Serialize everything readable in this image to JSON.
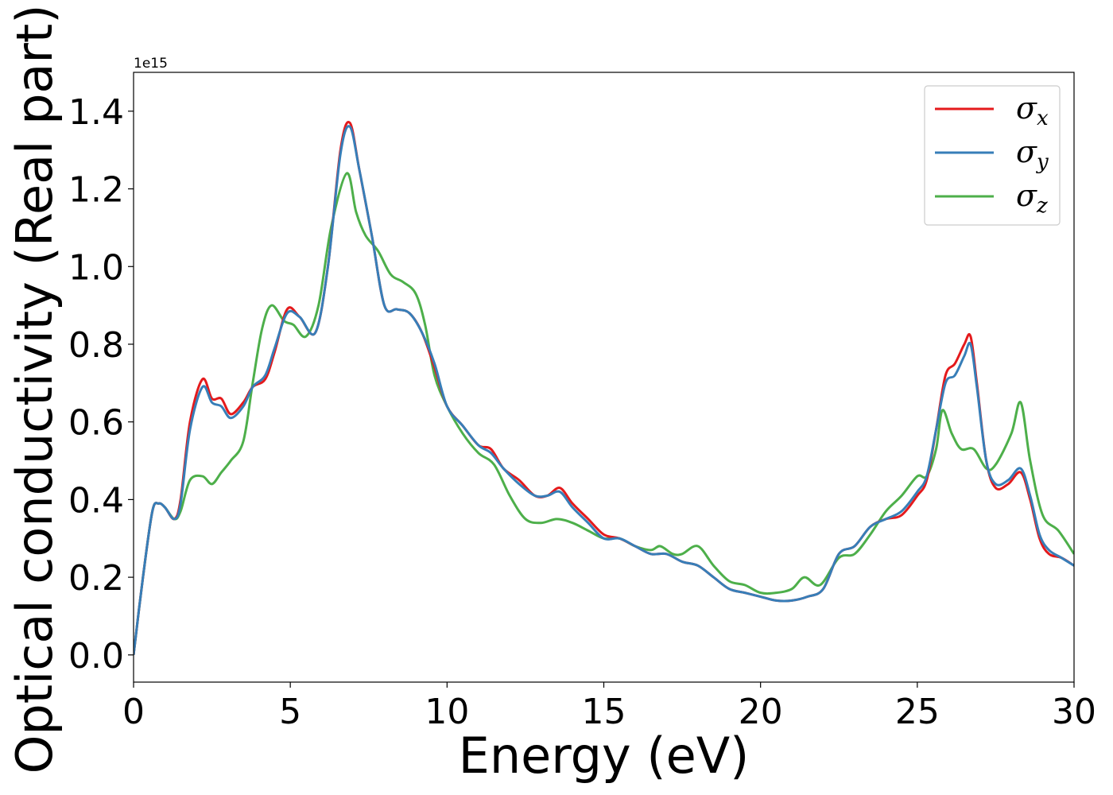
{
  "chart_data": {
    "type": "line",
    "title": "",
    "xlabel": "Energy (eV)",
    "ylabel": "Optical conductivity (Real part)",
    "y_offset_text": "1e15",
    "xlim": [
      0,
      30
    ],
    "ylim": [
      -0.07,
      1.5
    ],
    "xticks": [
      0,
      5,
      10,
      15,
      20,
      25,
      30
    ],
    "xtick_labels": [
      "0",
      "5",
      "10",
      "15",
      "20",
      "25",
      "30"
    ],
    "yticks": [
      0.0,
      0.2,
      0.4,
      0.6,
      0.8,
      1.0,
      1.2,
      1.4
    ],
    "ytick_labels": [
      "0.0",
      "0.2",
      "0.4",
      "0.6",
      "0.8",
      "1.0",
      "1.2",
      "1.4"
    ],
    "grid": false,
    "legend": {
      "placement": "top-right"
    },
    "series": [
      {
        "name": "σx",
        "legend_base": "σ",
        "legend_sub": "x",
        "color": "#e41a1c",
        "x": [
          0,
          0.3,
          0.6,
          0.8,
          1.0,
          1.3,
          1.5,
          1.8,
          2.2,
          2.5,
          2.8,
          3.1,
          3.5,
          3.8,
          4.2,
          4.5,
          4.9,
          5.3,
          5.8,
          6.2,
          6.6,
          6.9,
          7.2,
          7.6,
          8.0,
          8.4,
          8.8,
          9.2,
          9.6,
          10.0,
          10.5,
          11.0,
          11.4,
          11.8,
          12.3,
          12.8,
          13.2,
          13.6,
          14.0,
          14.5,
          15.0,
          15.5,
          16.0,
          16.5,
          17.0,
          17.5,
          18.0,
          18.5,
          19.0,
          19.5,
          20.0,
          20.5,
          21.0,
          21.5,
          22.0,
          22.5,
          23.0,
          23.5,
          24.0,
          24.5,
          25.0,
          25.3,
          25.6,
          25.9,
          26.2,
          26.5,
          26.7,
          26.9,
          27.2,
          27.5,
          27.9,
          28.3,
          28.6,
          28.9,
          29.2,
          29.6,
          30.0
        ],
        "y": [
          0.0,
          0.2,
          0.37,
          0.39,
          0.38,
          0.35,
          0.4,
          0.6,
          0.71,
          0.66,
          0.66,
          0.62,
          0.65,
          0.69,
          0.71,
          0.78,
          0.89,
          0.87,
          0.83,
          1.0,
          1.3,
          1.37,
          1.25,
          1.08,
          0.9,
          0.89,
          0.88,
          0.83,
          0.74,
          0.64,
          0.59,
          0.54,
          0.53,
          0.48,
          0.45,
          0.41,
          0.41,
          0.43,
          0.39,
          0.35,
          0.31,
          0.3,
          0.28,
          0.26,
          0.26,
          0.24,
          0.23,
          0.2,
          0.17,
          0.16,
          0.15,
          0.14,
          0.14,
          0.15,
          0.17,
          0.26,
          0.28,
          0.33,
          0.35,
          0.36,
          0.41,
          0.45,
          0.58,
          0.72,
          0.75,
          0.8,
          0.82,
          0.7,
          0.5,
          0.43,
          0.44,
          0.47,
          0.4,
          0.3,
          0.26,
          0.25,
          0.23
        ]
      },
      {
        "name": "σy",
        "legend_base": "σ",
        "legend_sub": "y",
        "color": "#377eb8",
        "x": [
          0,
          0.3,
          0.6,
          0.8,
          1.0,
          1.3,
          1.5,
          1.8,
          2.2,
          2.5,
          2.8,
          3.1,
          3.5,
          3.8,
          4.2,
          4.5,
          4.9,
          5.3,
          5.8,
          6.2,
          6.6,
          6.9,
          7.2,
          7.6,
          8.0,
          8.4,
          8.8,
          9.2,
          9.6,
          10.0,
          10.5,
          11.0,
          11.4,
          11.8,
          12.3,
          12.8,
          13.2,
          13.6,
          14.0,
          14.5,
          15.0,
          15.5,
          16.0,
          16.5,
          17.0,
          17.5,
          18.0,
          18.5,
          19.0,
          19.5,
          20.0,
          20.5,
          21.0,
          21.5,
          22.0,
          22.5,
          23.0,
          23.5,
          24.0,
          24.5,
          25.0,
          25.3,
          25.6,
          25.9,
          26.2,
          26.5,
          26.7,
          26.9,
          27.2,
          27.5,
          27.9,
          28.3,
          28.6,
          28.9,
          29.2,
          29.6,
          30.0
        ],
        "y": [
          0.0,
          0.2,
          0.37,
          0.39,
          0.38,
          0.35,
          0.39,
          0.58,
          0.69,
          0.65,
          0.64,
          0.61,
          0.64,
          0.69,
          0.72,
          0.79,
          0.88,
          0.87,
          0.83,
          1.0,
          1.29,
          1.36,
          1.25,
          1.08,
          0.9,
          0.89,
          0.88,
          0.83,
          0.75,
          0.64,
          0.59,
          0.54,
          0.52,
          0.48,
          0.44,
          0.41,
          0.41,
          0.42,
          0.38,
          0.34,
          0.3,
          0.3,
          0.28,
          0.26,
          0.26,
          0.24,
          0.23,
          0.2,
          0.17,
          0.16,
          0.15,
          0.14,
          0.14,
          0.15,
          0.17,
          0.26,
          0.28,
          0.33,
          0.35,
          0.37,
          0.42,
          0.46,
          0.58,
          0.7,
          0.72,
          0.77,
          0.8,
          0.69,
          0.5,
          0.44,
          0.45,
          0.48,
          0.41,
          0.31,
          0.27,
          0.25,
          0.23
        ]
      },
      {
        "name": "σz",
        "legend_base": "σ",
        "legend_sub": "z",
        "color": "#4daf4a",
        "x": [
          0,
          0.3,
          0.6,
          0.8,
          1.0,
          1.3,
          1.5,
          1.8,
          2.2,
          2.5,
          2.8,
          3.1,
          3.5,
          3.8,
          4.1,
          4.4,
          4.8,
          5.1,
          5.5,
          5.9,
          6.3,
          6.8,
          7.1,
          7.4,
          7.8,
          8.2,
          8.6,
          9.0,
          9.3,
          9.6,
          10.0,
          10.5,
          11.0,
          11.5,
          12.0,
          12.5,
          13.0,
          13.5,
          14.0,
          14.5,
          15.0,
          15.5,
          16.0,
          16.5,
          16.8,
          17.2,
          17.5,
          18.0,
          18.5,
          19.0,
          19.5,
          20.0,
          20.5,
          21.0,
          21.4,
          21.9,
          22.5,
          23.0,
          23.5,
          24.0,
          24.5,
          25.0,
          25.3,
          25.6,
          25.8,
          26.1,
          26.4,
          26.8,
          27.2,
          27.5,
          28.0,
          28.3,
          28.6,
          29.0,
          29.5,
          30.0
        ],
        "y": [
          0.0,
          0.2,
          0.37,
          0.39,
          0.38,
          0.35,
          0.37,
          0.45,
          0.46,
          0.44,
          0.47,
          0.5,
          0.55,
          0.7,
          0.84,
          0.9,
          0.86,
          0.85,
          0.82,
          0.9,
          1.1,
          1.24,
          1.14,
          1.08,
          1.04,
          0.98,
          0.96,
          0.93,
          0.85,
          0.72,
          0.64,
          0.57,
          0.52,
          0.49,
          0.41,
          0.35,
          0.34,
          0.35,
          0.34,
          0.32,
          0.3,
          0.3,
          0.28,
          0.27,
          0.28,
          0.26,
          0.26,
          0.28,
          0.23,
          0.19,
          0.18,
          0.16,
          0.16,
          0.17,
          0.2,
          0.18,
          0.25,
          0.26,
          0.31,
          0.37,
          0.41,
          0.46,
          0.46,
          0.53,
          0.63,
          0.57,
          0.53,
          0.53,
          0.48,
          0.49,
          0.57,
          0.65,
          0.5,
          0.36,
          0.32,
          0.26
        ]
      }
    ]
  }
}
